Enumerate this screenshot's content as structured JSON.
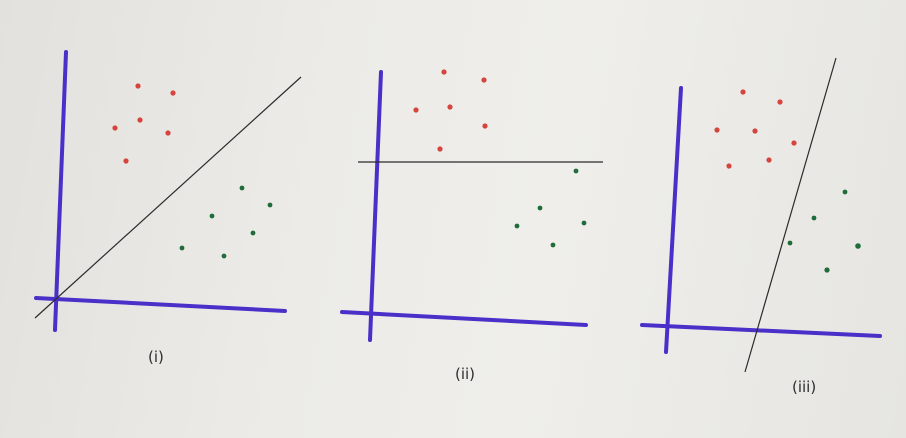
{
  "panels": [
    {
      "id": "i",
      "label": "(i)",
      "separator": "diagonal",
      "class_colors": {
        "red": "#d6453d",
        "green": "#1f6b3a"
      }
    },
    {
      "id": "ii",
      "label": "(ii)",
      "separator": "horizontal",
      "class_colors": {
        "red": "#d6453d",
        "green": "#1f6b3a"
      }
    },
    {
      "id": "iii",
      "label": "(iii)",
      "separator": "steep",
      "class_colors": {
        "red": "#d6453d",
        "green": "#1f6b3a"
      }
    }
  ],
  "colors": {
    "axis": "#4a2fc9",
    "separator": "#2b2b2b",
    "red_points": "#d6453d",
    "green_points": "#1f6b3a"
  }
}
